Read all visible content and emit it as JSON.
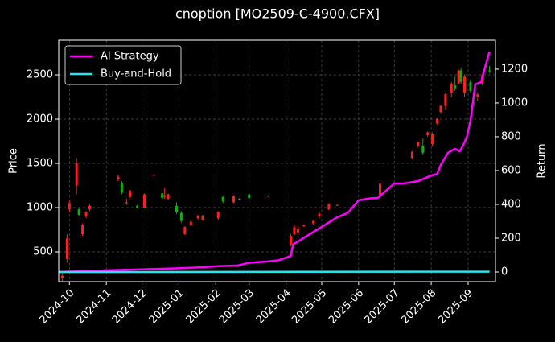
{
  "chart_data": {
    "type": "candlestick",
    "title": "cnoption [MO2509-C-4900.CFX]",
    "ylabel": "Price",
    "y2label": "Return",
    "xlim": [
      0,
      367
    ],
    "xticks": [
      {
        "value": 9,
        "label": "2024-10"
      },
      {
        "value": 40,
        "label": "2024-11"
      },
      {
        "value": 70,
        "label": "2024-12"
      },
      {
        "value": 101,
        "label": "2025-01"
      },
      {
        "value": 132,
        "label": "2025-02"
      },
      {
        "value": 160,
        "label": "2025-03"
      },
      {
        "value": 191,
        "label": "2025-04"
      },
      {
        "value": 221,
        "label": "2025-05"
      },
      {
        "value": 252,
        "label": "2025-06"
      },
      {
        "value": 282,
        "label": "2025-07"
      },
      {
        "value": 313,
        "label": "2025-08"
      },
      {
        "value": 344,
        "label": "2025-09"
      }
    ],
    "ylim": [
      164,
      2891
    ],
    "yticks": [
      500,
      1000,
      1500,
      2000,
      2500
    ],
    "y2lim": [
      -57,
      1371
    ],
    "y2ticks": [
      0,
      200,
      400,
      600,
      800,
      1000,
      1200
    ],
    "grid": true,
    "legend": "upper left",
    "candles": {
      "up_color": "#ff2020",
      "down_color": "#10b010",
      "x": [
        3,
        7,
        9,
        15,
        17,
        20,
        23,
        26,
        50,
        53,
        57,
        60,
        66,
        72,
        80,
        87,
        89,
        92,
        99,
        103,
        106,
        111,
        117,
        121,
        134,
        138,
        147,
        152,
        160,
        176,
        195,
        198,
        201,
        206,
        214,
        219,
        227,
        234,
        270,
        297,
        302,
        306,
        310,
        314,
        318,
        321,
        325,
        330,
        333,
        336,
        338,
        341,
        346,
        352,
        356,
        359,
        362
      ],
      "open": [
        200,
        420,
        980,
        1250,
        980,
        700,
        900,
        980,
        1320,
        1280,
        1050,
        1120,
        1020,
        1000,
        1370,
        1160,
        1120,
        1100,
        1020,
        940,
        700,
        800,
        880,
        860,
        880,
        1120,
        1060,
        1100,
        1150,
        1130,
        580,
        700,
        720,
        790,
        820,
        900,
        980,
        1030,
        1140,
        1560,
        1700,
        1700,
        1820,
        1720,
        1950,
        2080,
        2150,
        2300,
        2380,
        2400,
        2550,
        2300,
        2420,
        2250,
        2400,
        2600,
        2550
      ],
      "high": [
        260,
        700,
        1080,
        1560,
        1000,
        820,
        960,
        1040,
        1370,
        1300,
        1100,
        1200,
        1030,
        1160,
        1380,
        1170,
        1220,
        1160,
        1060,
        960,
        790,
        850,
        920,
        920,
        960,
        1130,
        1140,
        1110,
        1160,
        1140,
        700,
        800,
        790,
        810,
        860,
        950,
        1050,
        1040,
        1280,
        1640,
        1750,
        1780,
        1860,
        1850,
        2010,
        2160,
        2300,
        2420,
        2480,
        2560,
        2580,
        2500,
        2450,
        2300,
        2520,
        2650,
        2600
      ],
      "low": [
        170,
        380,
        950,
        1150,
        900,
        680,
        880,
        960,
        1300,
        1150,
        1030,
        1110,
        990,
        990,
        1360,
        1100,
        1100,
        1090,
        930,
        830,
        690,
        790,
        860,
        850,
        860,
        1050,
        1050,
        1090,
        1100,
        1120,
        560,
        690,
        700,
        780,
        800,
        880,
        970,
        1020,
        1140,
        1550,
        1680,
        1600,
        1800,
        1700,
        1940,
        2060,
        2100,
        2250,
        2320,
        2390,
        2400,
        2250,
        2300,
        2200,
        2380,
        2580,
        2520
      ],
      "close": [
        230,
        650,
        1050,
        1500,
        920,
        800,
        950,
        1020,
        1350,
        1170,
        1060,
        1190,
        1000,
        1150,
        1370,
        1110,
        1140,
        1150,
        950,
        850,
        780,
        840,
        910,
        900,
        950,
        1070,
        1130,
        1095,
        1110,
        1135,
        680,
        780,
        760,
        800,
        850,
        930,
        1040,
        1030,
        1270,
        1630,
        1740,
        1620,
        1850,
        1830,
        2000,
        2150,
        2280,
        2400,
        2350,
        2550,
        2420,
        2480,
        2320,
        2280,
        2500,
        2620,
        2540
      ]
    },
    "series": [
      {
        "name": "AI Strategy",
        "color": "#ff00ff",
        "axis": "y2",
        "x": [
          0,
          20,
          40,
          60,
          80,
          101,
          120,
          135,
          150,
          160,
          175,
          185,
          195,
          197,
          199,
          210,
          221,
          234,
          243,
          252,
          262,
          268,
          282,
          290,
          302,
          313,
          318,
          321,
          327,
          333,
          337,
          340,
          343,
          346,
          350,
          355,
          359,
          362
        ],
        "values": [
          0,
          5,
          10,
          14,
          18,
          22,
          28,
          35,
          38,
          55,
          62,
          70,
          95,
          165,
          172,
          220,
          267,
          324,
          350,
          424,
          436,
          438,
          524,
          524,
          538,
          571,
          580,
          633,
          705,
          729,
          715,
          752,
          800,
          895,
          1110,
          1124,
          1229,
          1305
        ]
      },
      {
        "name": "Buy-and-Hold",
        "color": "#22e5f0",
        "axis": "y2",
        "x": [
          0,
          362
        ],
        "values": [
          0,
          2
        ]
      }
    ]
  }
}
